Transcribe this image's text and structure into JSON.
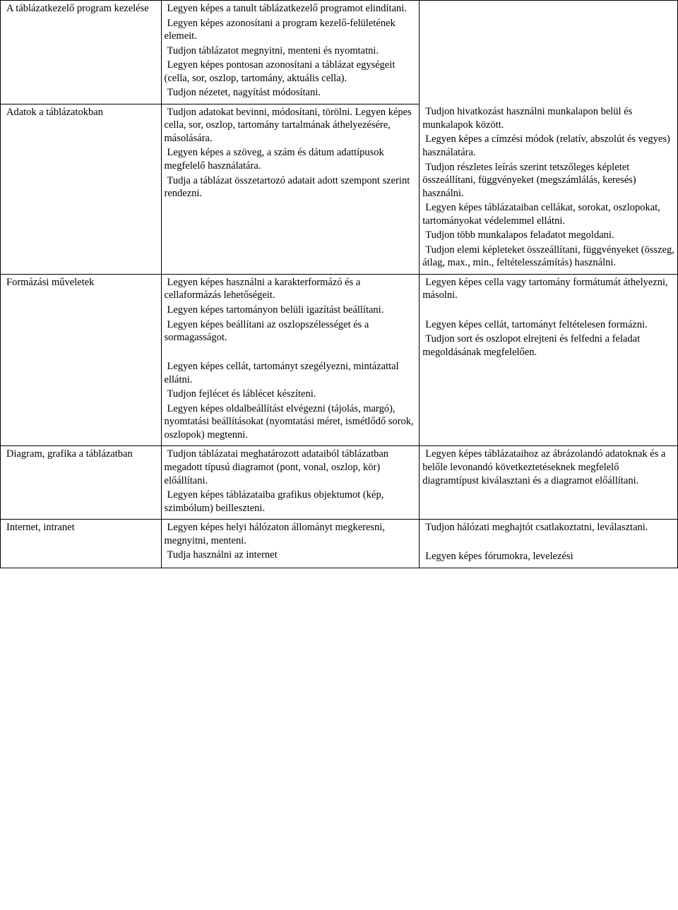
{
  "rows": [
    {
      "col1": [
        "A táblázatkezelő program kezelése"
      ],
      "col2": [
        "Legyen képes a tanult táblázatkezelő programot elindítani.",
        "Legyen képes azonosítani a program kezelő-felületének elemeit.",
        "Tudjon táblázatot megnyitni, menteni és nyomtatni.",
        "Legyen képes pontosan azonosítani a táblázat egységeit (cella, sor, oszlop, tartomány, aktuális cella).",
        "Tudjon nézetet, nagyítást módosítani."
      ],
      "col3": []
    },
    {
      "col1": [
        "Adatok a táblázatokban"
      ],
      "col2": [
        "Tudjon adatokat bevinni, módosítani, törölni. Legyen képes cella, sor, oszlop, tartomány tartalmának áthelyezésére, másolására.",
        "Legyen képes a szöveg, a szám és dátum adattípusok megfelelő használatára.",
        "Tudja a táblázat összetartozó adatait adott szempont szerint rendezni."
      ],
      "col3": [
        "Tudjon hivatkozást használni munkalapon belül és munkalapok között.",
        "Legyen képes a címzési módok (relatív, abszolút és vegyes) használatára.",
        "Tudjon részletes leírás szerint tetszőleges képletet összeállítani, függvényeket (megszámlálás, keresés) használni.",
        "Legyen képes táblázataiban cellákat, sorokat, oszlopokat, tartományokat védelemmel ellátni.",
        "Tudjon több munkalapos feladatot megoldani.",
        "Tudjon elemi képleteket összeállítani, függvényeket (összeg, átlag, max., min., feltételesszámítás) használni."
      ]
    },
    {
      "col1": [
        "Formázási műveletek"
      ],
      "col2": [
        "Legyen képes használni a karakterformázó és a cellaformázás lehetőségeit.",
        "Legyen képes tartományon belüli igazítást beállítani.",
        "Legyen képes beállítani az oszlopszélességet és a sormagasságot.",
        "",
        "Legyen képes cellát, tartományt szegélyezni, mintázattal ellátni.",
        "Tudjon fejlécet és láblécet készíteni.",
        "Legyen képes oldalbeállítást elvégezni (tájolás, margó), nyomtatási beállításokat (nyomtatási méret, ismétlődő sorok, oszlopok) megtenni."
      ],
      "col3": [
        "Legyen képes cella vagy tartomány formátumát áthelyezni, másolni.",
        "",
        "Legyen képes cellát, tartományt feltételesen formázni.",
        "Tudjon sort és oszlopot elrejteni és felfedni a feladat megoldásának megfelelően."
      ]
    },
    {
      "col1": [
        "Diagram, grafika a táblázatban"
      ],
      "col2": [
        "Tudjon táblázatai meghatározott adataiból táblázatban megadott típusú diagramot (pont, vonal, oszlop, kör) előállítani.",
        "Legyen képes táblázataiba grafikus objektumot (kép, szimbólum) beilleszteni."
      ],
      "col3": [
        "Legyen képes táblázataihoz az ábrázolandó adatoknak és a belőle levonandó következtetéseknek megfelelő diagramtípust kiválasztani és a diagramot előállítani."
      ]
    },
    {
      "col1": [
        "Internet, intranet"
      ],
      "col2": [
        "Legyen képes helyi hálózaton állományt megkeresni, megnyitni, menteni.",
        "Tudja használni az internet"
      ],
      "col3": [
        "Tudjon hálózati meghajtót csatlakoztatni, leválasztani.",
        "",
        "Legyen képes fórumokra, levelezési"
      ]
    }
  ]
}
